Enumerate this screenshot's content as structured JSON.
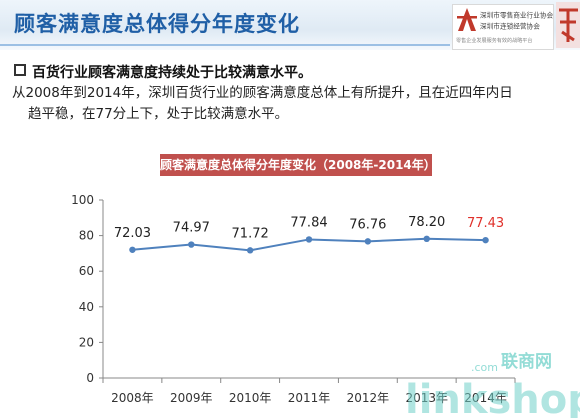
{
  "header": {
    "title": "顾客满意度总体得分年度变化",
    "logo_lines": [
      "深圳市零售商业行业协会",
      "深圳市连锁经营协会",
      "零售企业发展服务有效的战略平台"
    ]
  },
  "bullet": {
    "text": "百货行业顾客满意度持续处于比较满意水平。"
  },
  "paragraph": {
    "line1": "从2008年到2014年，深圳百货行业的顾客满意度总体上有所提升，且在近四年内日",
    "line2": "趋平稳，在77分上下，处于比较满意水平。"
  },
  "watermark": {
    "brand": "linkshop",
    "cn": "联商网",
    "dot": ".com"
  },
  "colors": {
    "line": "#4f81bd",
    "highlight": "#e0312b",
    "title_bg": "#c0504d",
    "header_text": "#1f5fa6"
  },
  "chart_data": {
    "type": "line",
    "title": "顾客满意度总体得分年度变化（2008年-2014年）",
    "categories": [
      "2008年",
      "2009年",
      "2010年",
      "2011年",
      "2012年",
      "2013年",
      "2014年"
    ],
    "values": [
      72.03,
      74.97,
      71.72,
      77.84,
      76.76,
      78.2,
      77.43
    ],
    "data_labels": [
      "72.03",
      "74.97",
      "71.72",
      "77.84",
      "76.76",
      "78.20",
      "77.43"
    ],
    "ylim": [
      0,
      100
    ],
    "yticks": [
      0,
      20,
      40,
      60,
      80,
      100
    ],
    "highlight_index": 6,
    "grid": false,
    "legend": "none"
  }
}
